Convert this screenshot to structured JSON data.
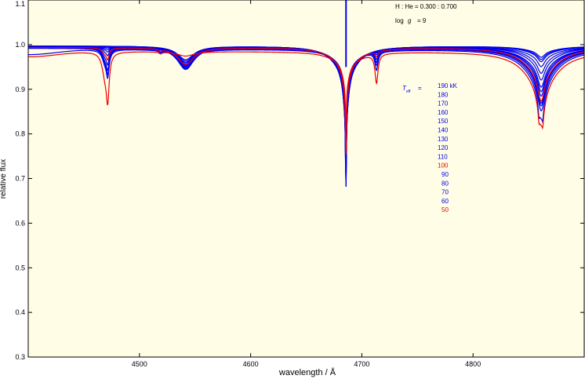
{
  "chart_data": {
    "type": "line",
    "xlabel": "wavelength / Å",
    "ylabel": "relative flux",
    "xlim": [
      4400,
      4900
    ],
    "ylim": [
      0.3,
      1.1
    ],
    "x_ticks": [
      "4500",
      "4600",
      "4700",
      "4800"
    ],
    "y_ticks": [
      "0.3",
      "0.4",
      "0.5",
      "0.6",
      "0.7",
      "0.8",
      "0.9",
      "1.0",
      "1.1"
    ],
    "annotations": {
      "composition": "H : He = 0.300 : 0.700",
      "gravity_prefix": "log",
      "gravity_symbol": "g",
      "gravity_value": "= 9",
      "teff_symbol": "T",
      "teff_subscript": "eff",
      "teff_eq": "="
    },
    "legend_entries": [
      {
        "label": "190 kK",
        "color": "#0000ee"
      },
      {
        "label": "180",
        "color": "#0000ee"
      },
      {
        "label": "170",
        "color": "#0000ee"
      },
      {
        "label": "160",
        "color": "#0000ee"
      },
      {
        "label": "150",
        "color": "#0000ee"
      },
      {
        "label": "140",
        "color": "#0000ee"
      },
      {
        "label": "130",
        "color": "#0000ee"
      },
      {
        "label": "120",
        "color": "#0000ee"
      },
      {
        "label": "110",
        "color": "#0000ee"
      },
      {
        "label": "100",
        "color": "#ee0000"
      },
      {
        "label": "90",
        "color": "#0000ee"
      },
      {
        "label": "80",
        "color": "#0000ee"
      },
      {
        "label": "70",
        "color": "#0000ee"
      },
      {
        "label": "60",
        "color": "#0000ee"
      },
      {
        "label": "50",
        "color": "#ee0000"
      }
    ],
    "series": [
      {
        "teff": 190,
        "color": "#0000ee",
        "continuum": 0.997,
        "lines": {
          "he4471": 0.0,
          "he4541": 0.03,
          "he4686": 0.33,
          "he4713": 0.0,
          "hb4861": 0.025
        }
      },
      {
        "teff": 180,
        "color": "#0000ee",
        "continuum": 0.997,
        "lines": {
          "he4471": 0.0,
          "he4541": 0.033,
          "he4686": 0.33,
          "he4713": 0.0,
          "hb4861": 0.03
        }
      },
      {
        "teff": 170,
        "color": "#0000ee",
        "continuum": 0.997,
        "lines": {
          "he4471": 0.0,
          "he4541": 0.036,
          "he4686": 0.32,
          "he4713": 0.0,
          "hb4861": 0.035
        }
      },
      {
        "teff": 160,
        "color": "#0000ee",
        "continuum": 0.996,
        "lines": {
          "he4471": 0.0,
          "he4541": 0.039,
          "he4686": 0.31,
          "he4713": 0.0,
          "hb4861": 0.045
        }
      },
      {
        "teff": 150,
        "color": "#0000ee",
        "continuum": 0.996,
        "lines": {
          "he4471": 0.0,
          "he4541": 0.042,
          "he4686": 0.3,
          "he4713": 0.0,
          "hb4861": 0.06
        }
      },
      {
        "teff": 140,
        "color": "#0000ee",
        "continuum": 0.996,
        "lines": {
          "he4471": 0.003,
          "he4541": 0.045,
          "he4686": 0.29,
          "he4713": 0.0,
          "hb4861": 0.075
        }
      },
      {
        "teff": 130,
        "color": "#0000ee",
        "continuum": 0.995,
        "lines": {
          "he4471": 0.006,
          "he4541": 0.047,
          "he4686": 0.28,
          "he4713": 0.002,
          "hb4861": 0.09
        }
      },
      {
        "teff": 120,
        "color": "#0000ee",
        "continuum": 0.995,
        "lines": {
          "he4471": 0.012,
          "he4541": 0.049,
          "he4686": 0.27,
          "he4713": 0.004,
          "hb4861": 0.1
        }
      },
      {
        "teff": 110,
        "color": "#0000ee",
        "continuum": 0.995,
        "lines": {
          "he4471": 0.022,
          "he4541": 0.05,
          "he4686": 0.26,
          "he4713": 0.008,
          "hb4861": 0.11
        }
      },
      {
        "teff": 100,
        "color": "#ee0000",
        "continuum": 0.994,
        "lines": {
          "he4471": 0.032,
          "he4541": 0.038,
          "he4686": 0.25,
          "he4713": 0.012,
          "hb4861": 0.12
        }
      },
      {
        "teff": 90,
        "color": "#0000ee",
        "continuum": 0.994,
        "lines": {
          "he4471": 0.045,
          "he4541": 0.045,
          "he4686": 0.24,
          "he4713": 0.018,
          "hb4861": 0.125
        }
      },
      {
        "teff": 80,
        "color": "#0000ee",
        "continuum": 0.993,
        "lines": {
          "he4471": 0.058,
          "he4541": 0.04,
          "he4686": 0.23,
          "he4713": 0.024,
          "hb4861": 0.13
        }
      },
      {
        "teff": 70,
        "color": "#0000ee",
        "continuum": 0.992,
        "lines": {
          "he4471": 0.068,
          "he4541": 0.035,
          "he4686": 0.215,
          "he4713": 0.03,
          "hb4861": 0.14
        }
      },
      {
        "teff": 60,
        "color": "#0000ee",
        "continuum": 0.99,
        "lines": {
          "he4471": 0.075,
          "he4541": 0.03,
          "he4686": 0.2,
          "he4713": 0.04,
          "hb4861": 0.15
        }
      },
      {
        "teff": 50,
        "color": "#ee0000",
        "continuum": 0.985,
        "lines": {
          "he4471": 0.14,
          "he4541": 0.01,
          "he4686": 0.18,
          "he4713": 0.065,
          "hb4861": 0.16
        }
      }
    ],
    "grid": false,
    "legend_placement": "right-center",
    "plot_background": "#fffde5"
  }
}
